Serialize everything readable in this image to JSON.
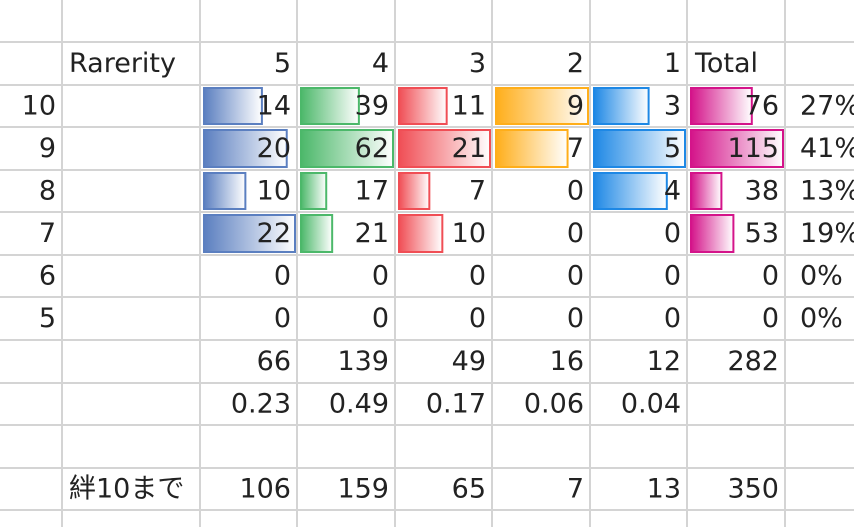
{
  "table": {
    "header": [
      "Rarerity",
      "5",
      "4",
      "3",
      "2",
      "1",
      "Total"
    ],
    "bar_colors": [
      "#5b7fc0",
      "#4cb86a",
      "#f04e55",
      "#ffae1a",
      "#1e88e5",
      "#d4148a"
    ],
    "rows": [
      {
        "label": "10",
        "values": [
          14,
          39,
          11,
          9,
          3,
          76
        ],
        "share": "27%"
      },
      {
        "label": "9",
        "values": [
          20,
          62,
          21,
          7,
          5,
          115
        ],
        "share": "41%"
      },
      {
        "label": "8",
        "values": [
          10,
          17,
          7,
          0,
          4,
          38
        ],
        "share": "13%"
      },
      {
        "label": "7",
        "values": [
          22,
          21,
          10,
          0,
          0,
          53
        ],
        "share": "19%"
      },
      {
        "label": "6",
        "values": [
          0,
          0,
          0,
          0,
          0,
          0
        ],
        "share": "0%"
      },
      {
        "label": "5",
        "values": [
          0,
          0,
          0,
          0,
          0,
          0
        ],
        "share": "0%"
      }
    ],
    "totals": [
      66,
      139,
      49,
      16,
      12,
      282
    ],
    "ratios": [
      0.23,
      0.49,
      0.17,
      0.06,
      0.04
    ],
    "kizuna": {
      "label": "絆10まで",
      "values": [
        106,
        159,
        65,
        7,
        13,
        350
      ]
    }
  }
}
